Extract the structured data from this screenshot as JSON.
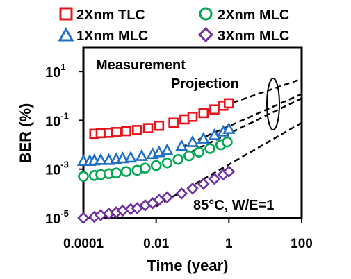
{
  "chart_data": {
    "type": "scatter",
    "xscale": "log",
    "yscale": "log",
    "xlim": [
      0.0001,
      100
    ],
    "ylim": [
      1e-05,
      100
    ],
    "xlabel": "Time (year)",
    "ylabel": "BER (%)",
    "xticks": [
      {
        "value": 0.0001,
        "label": "0.0001"
      },
      {
        "value": 0.01,
        "label": "0.01"
      },
      {
        "value": 1,
        "label": "1"
      },
      {
        "value": 100,
        "label": "100"
      }
    ],
    "yticks": [
      {
        "value": 1e-05,
        "base": "10",
        "exp": "-5"
      },
      {
        "value": 0.001,
        "base": "10",
        "exp": "-3"
      },
      {
        "value": 0.1,
        "base": "10",
        "exp": "-1"
      },
      {
        "value": 10,
        "base": "10",
        "exp": "1"
      }
    ],
    "annotations": {
      "measurement": "Measurement",
      "projection": "Projection",
      "condition": "85°C, W/E=1"
    },
    "series": [
      {
        "name": "2Xnm TLC",
        "marker": "square",
        "color": "#e8141b",
        "points": [
          [
            0.0002,
            0.028
          ],
          [
            0.0003,
            0.03
          ],
          [
            0.0005,
            0.031
          ],
          [
            0.0008,
            0.033
          ],
          [
            0.0015,
            0.036
          ],
          [
            0.003,
            0.04
          ],
          [
            0.006,
            0.048
          ],
          [
            0.012,
            0.06
          ],
          [
            0.03,
            0.08
          ],
          [
            0.06,
            0.11
          ],
          [
            0.1,
            0.14
          ],
          [
            0.2,
            0.2
          ],
          [
            0.4,
            0.28
          ],
          [
            0.7,
            0.4
          ],
          [
            1,
            0.5
          ]
        ],
        "projection": [
          [
            0.05,
            0.1
          ],
          [
            100,
            5
          ]
        ]
      },
      {
        "name": "2Xnm MLC",
        "marker": "circle",
        "color": "#00a651",
        "points": [
          [
            0.0001,
            0.0005
          ],
          [
            0.0002,
            0.00055
          ],
          [
            0.0003,
            0.0006
          ],
          [
            0.0005,
            0.00065
          ],
          [
            0.0008,
            0.0007
          ],
          [
            0.0015,
            0.0008
          ],
          [
            0.003,
            0.0009
          ],
          [
            0.005,
            0.0011
          ],
          [
            0.01,
            0.0014
          ],
          [
            0.02,
            0.0018
          ],
          [
            0.04,
            0.0025
          ],
          [
            0.08,
            0.0035
          ],
          [
            0.15,
            0.005
          ],
          [
            0.3,
            0.007
          ],
          [
            0.6,
            0.01
          ],
          [
            0.9,
            0.013
          ]
        ],
        "projection": [
          [
            0.02,
            0.0017
          ],
          [
            100,
            0.8
          ]
        ]
      },
      {
        "name": "1Xnm MLC",
        "marker": "triangle",
        "color": "#1f6fc5",
        "points": [
          [
            0.0001,
            0.0022
          ],
          [
            0.00015,
            0.0022
          ],
          [
            0.0002,
            0.0023
          ],
          [
            0.0003,
            0.0024
          ],
          [
            0.0005,
            0.0024
          ],
          [
            0.0008,
            0.0026
          ],
          [
            0.0012,
            0.0028
          ],
          [
            0.002,
            0.003
          ],
          [
            0.004,
            0.0035
          ],
          [
            0.008,
            0.0042
          ],
          [
            0.012,
            0.005
          ],
          [
            0.02,
            0.006
          ],
          [
            0.05,
            0.009
          ],
          [
            0.1,
            0.013
          ],
          [
            0.2,
            0.018
          ],
          [
            0.4,
            0.025
          ],
          [
            0.7,
            0.035
          ],
          [
            1,
            0.045
          ]
        ],
        "projection": [
          [
            0.05,
            0.008
          ],
          [
            100,
            1.2
          ]
        ]
      },
      {
        "name": "3Xnm MLC",
        "marker": "diamond",
        "color": "#7030a0",
        "points": [
          [
            0.0001,
            1e-05
          ],
          [
            0.0002,
            1.1e-05
          ],
          [
            0.0003,
            1.3e-05
          ],
          [
            0.0005,
            1.5e-05
          ],
          [
            0.0008,
            1.7e-05
          ],
          [
            0.0012,
            2e-05
          ],
          [
            0.002,
            2.3e-05
          ],
          [
            0.003,
            2.5e-05
          ],
          [
            0.005,
            3.3e-05
          ],
          [
            0.008,
            4e-05
          ],
          [
            0.012,
            5.5e-05
          ],
          [
            0.02,
            7e-05
          ],
          [
            0.05,
            0.0001
          ],
          [
            0.1,
            0.00016
          ],
          [
            0.2,
            0.00025
          ],
          [
            0.4,
            0.0004
          ],
          [
            0.7,
            0.0006
          ],
          [
            1,
            0.0008
          ]
        ],
        "projection": [
          [
            0.01,
            3e-05
          ],
          [
            100,
            0.08
          ]
        ]
      }
    ]
  }
}
